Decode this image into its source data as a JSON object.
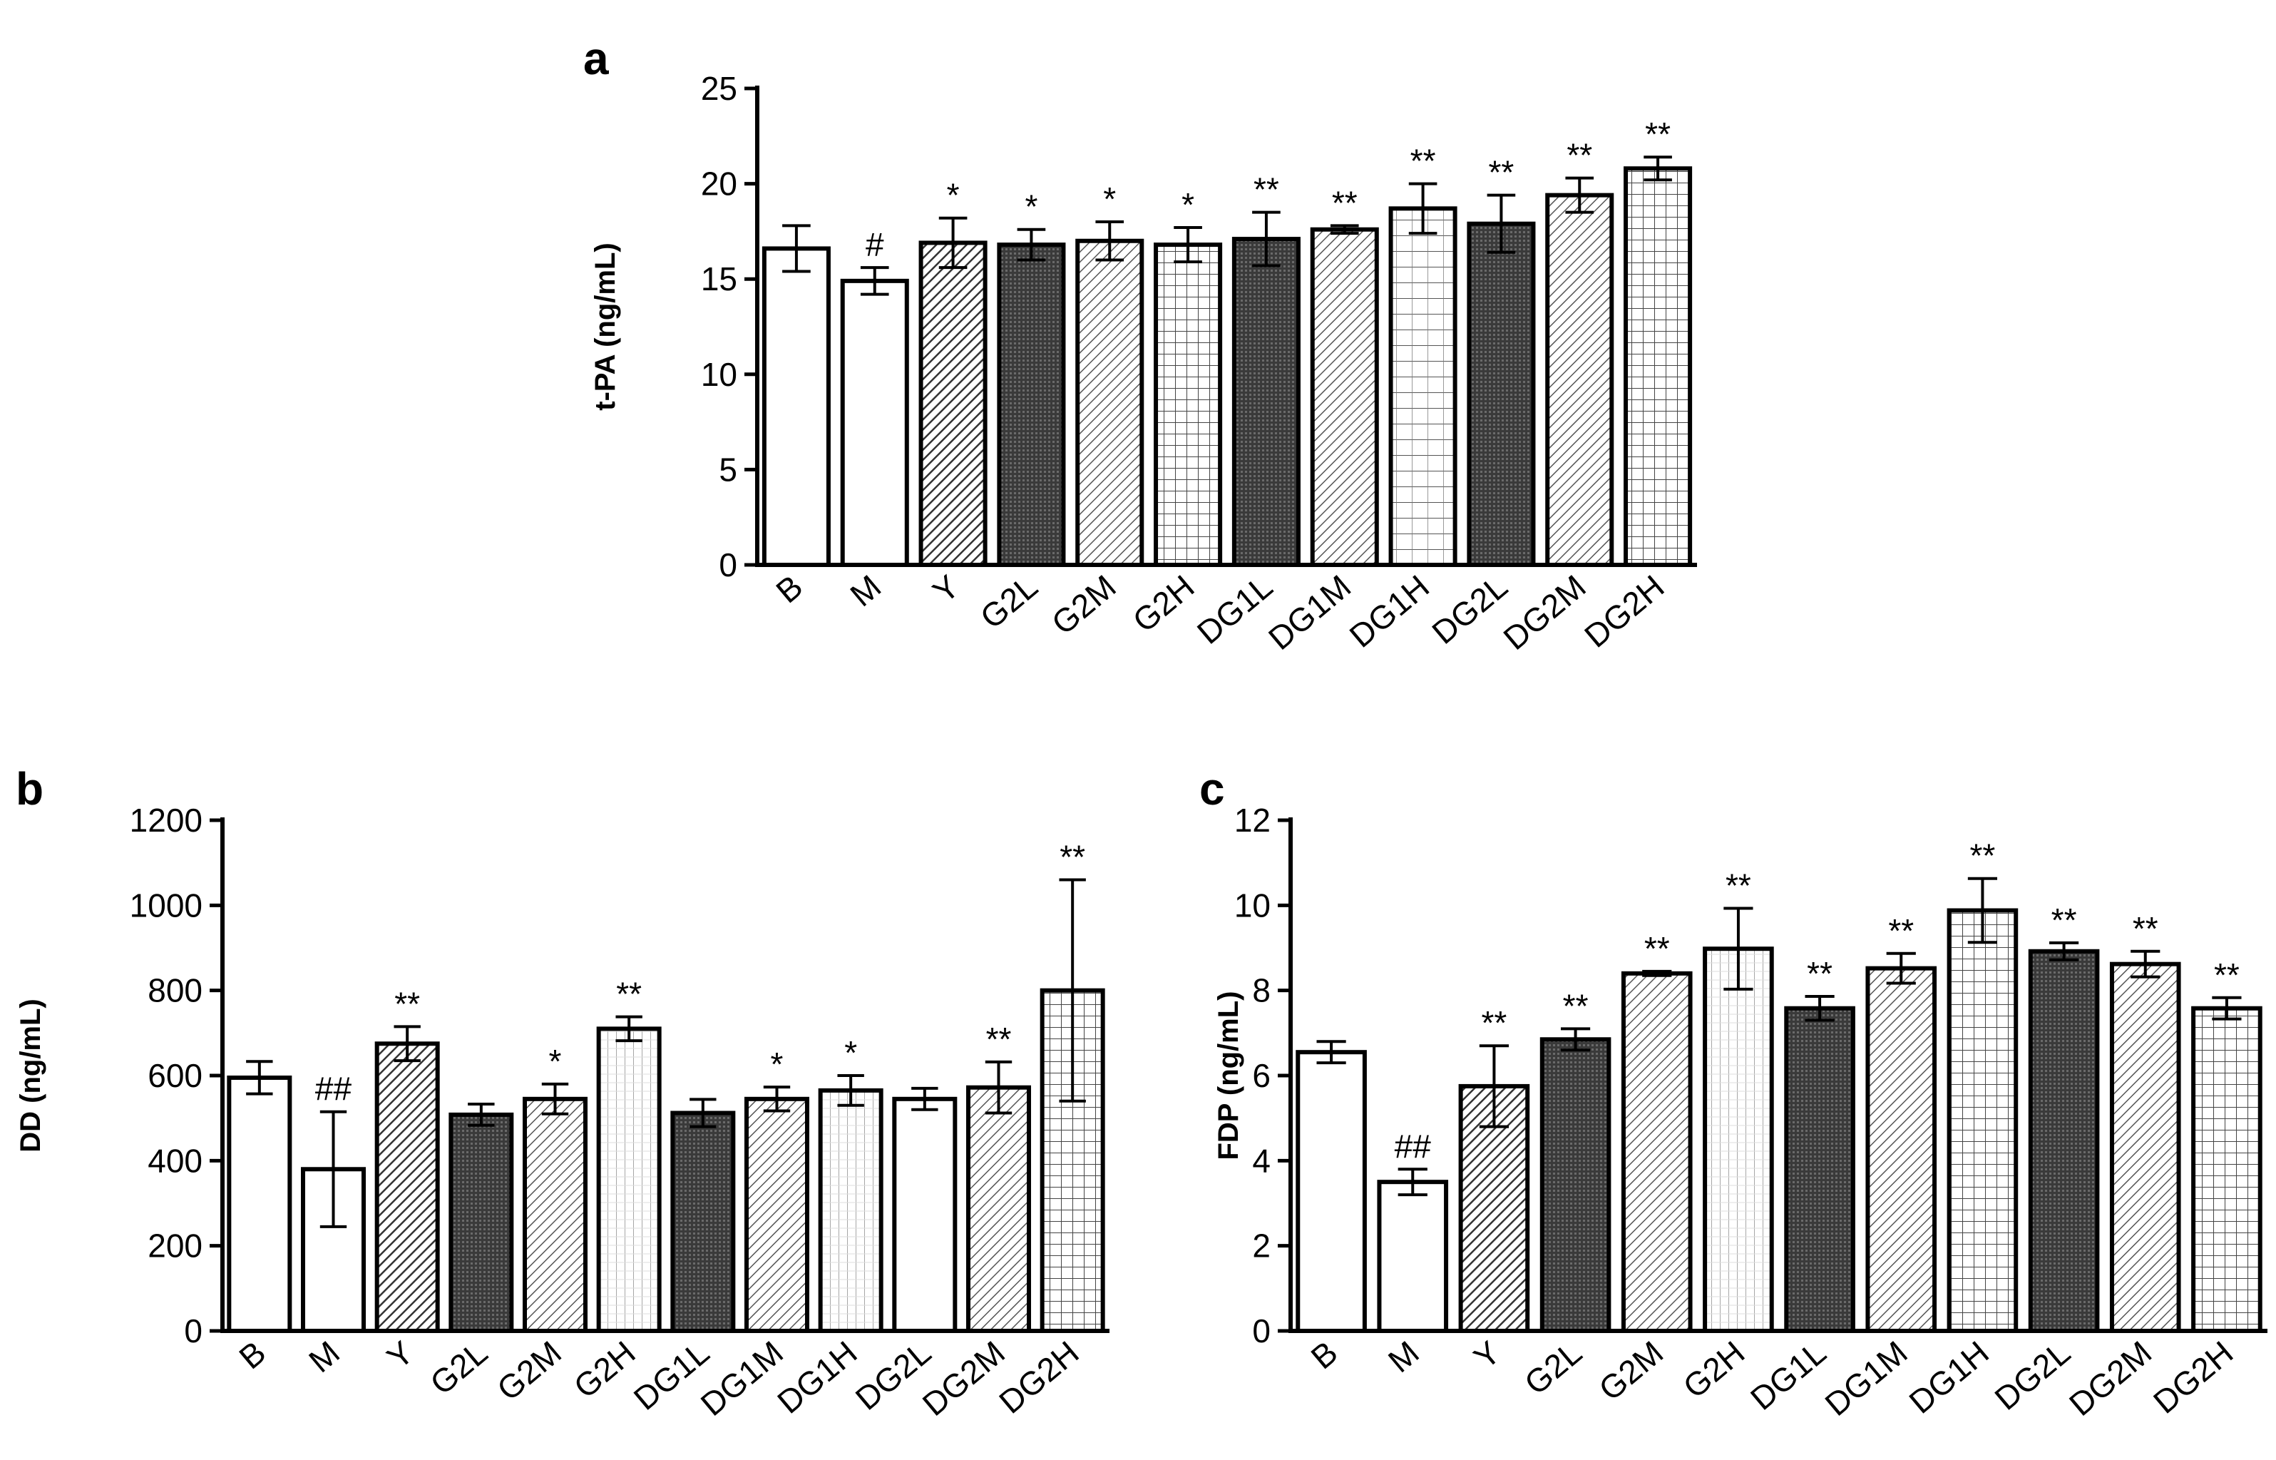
{
  "chart_data": [
    {
      "panel": "a",
      "type": "bar",
      "ylabel": "t-PA (ng/mL)",
      "ylim": [
        0,
        25
      ],
      "yticks": [
        0,
        5,
        10,
        15,
        20,
        25
      ],
      "categories": [
        "B",
        "M",
        "Y",
        "G2L",
        "G2M",
        "G2H",
        "DG1L",
        "DG1M",
        "DG1H",
        "DG2L",
        "DG2M",
        "DG2H"
      ],
      "values": [
        16.6,
        14.9,
        16.9,
        16.8,
        17.0,
        16.8,
        17.1,
        17.6,
        18.7,
        17.9,
        19.4,
        20.8
      ],
      "errors": [
        1.2,
        0.7,
        1.3,
        0.8,
        1.0,
        0.9,
        1.4,
        0.2,
        1.3,
        1.5,
        0.9,
        0.6
      ],
      "annotations": [
        "",
        "#",
        "*",
        "*",
        "*",
        "*",
        "**",
        "**",
        "**",
        "**",
        "**",
        "**"
      ],
      "patterns": [
        "white",
        "white",
        "diag-dense",
        "dark",
        "diag-light",
        "grid",
        "dark",
        "diag-light",
        "grid-fine",
        "dark",
        "diag-light",
        "grid"
      ]
    },
    {
      "panel": "b",
      "type": "bar",
      "ylabel": "DD (ng/mL)",
      "ylim": [
        0,
        1200
      ],
      "yticks": [
        0,
        200,
        400,
        600,
        800,
        1000,
        1200
      ],
      "categories": [
        "B",
        "M",
        "Y",
        "G2L",
        "G2M",
        "G2H",
        "DG1L",
        "DG1M",
        "DG1H",
        "DG2L",
        "DG2M",
        "DG2H"
      ],
      "values": [
        595,
        380,
        675,
        508,
        545,
        710,
        512,
        545,
        565,
        545,
        572,
        800
      ],
      "errors": [
        38,
        135,
        40,
        25,
        35,
        28,
        32,
        28,
        35,
        25,
        60,
        260
      ],
      "annotations": [
        "",
        "##",
        "**",
        "",
        "*",
        "**",
        "",
        "*",
        "*",
        "",
        "**",
        "**"
      ],
      "patterns": [
        "white",
        "white",
        "diag-dense",
        "dark",
        "diag-light",
        "vlines",
        "dark",
        "diag-light",
        "vlines",
        "white",
        "diag-light",
        "grid"
      ]
    },
    {
      "panel": "c",
      "type": "bar",
      "ylabel": "FDP (ng/mL)",
      "ylim": [
        0,
        12
      ],
      "yticks": [
        0,
        2,
        4,
        6,
        8,
        10,
        12
      ],
      "categories": [
        "B",
        "M",
        "Y",
        "G2L",
        "G2M",
        "G2H",
        "DG1L",
        "DG1M",
        "DG1H",
        "DG2L",
        "DG2M",
        "DG2H"
      ],
      "values": [
        6.55,
        3.5,
        5.75,
        6.85,
        8.4,
        8.98,
        7.58,
        8.52,
        9.88,
        8.92,
        8.62,
        7.58
      ],
      "errors": [
        0.25,
        0.3,
        0.95,
        0.25,
        0.05,
        0.95,
        0.28,
        0.35,
        0.75,
        0.2,
        0.3,
        0.25
      ],
      "annotations": [
        "",
        "##",
        "**",
        "**",
        "**",
        "**",
        "**",
        "**",
        "**",
        "**",
        "**",
        "**"
      ],
      "patterns": [
        "white",
        "white",
        "diag-dense",
        "dark",
        "diag-light",
        "vlines",
        "dark",
        "diag-light",
        "grid",
        "dark",
        "diag-light",
        "grid"
      ]
    }
  ]
}
